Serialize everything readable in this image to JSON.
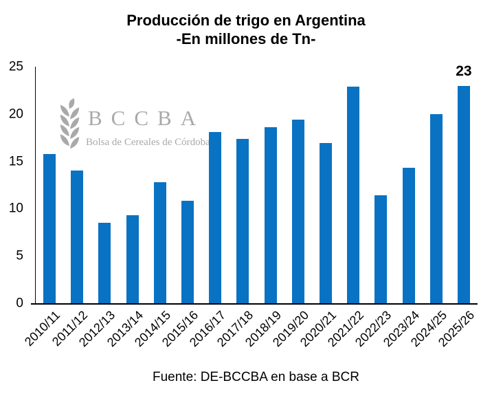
{
  "colors": {
    "bar": "#0a72c2",
    "watermark": "#a9a9a9",
    "axis": "#000000",
    "text": "#000000"
  },
  "watermark": {
    "icon": "wheat-spike-icon",
    "acronym": "BCCBA",
    "name": "Bolsa de Cereales de Córdoba"
  },
  "source": "Fuente: DE-BCCBA en base a BCR",
  "chart_data": {
    "type": "bar",
    "title": "Producción de trigo en Argentina",
    "subtitle": "-En millones de Tn-",
    "categories": [
      "2010/11",
      "2011/12",
      "2012/13",
      "2013/14",
      "2014/15",
      "2015/16",
      "2016/17",
      "2017/18",
      "2018/19",
      "2019/20",
      "2020/21",
      "2021/22",
      "2022/23",
      "2023/24",
      "2024/25",
      "2025/26"
    ],
    "values": [
      15.8,
      14.0,
      8.5,
      9.3,
      12.8,
      10.8,
      18.1,
      17.4,
      18.6,
      19.4,
      16.9,
      22.9,
      11.4,
      14.3,
      20.0,
      23.0
    ],
    "ylim": [
      0,
      25
    ],
    "yticks": [
      0,
      5,
      10,
      15,
      20,
      25
    ],
    "grid": false,
    "legend": false,
    "data_labels": [
      {
        "category": "2025/26",
        "text": "23"
      }
    ]
  }
}
